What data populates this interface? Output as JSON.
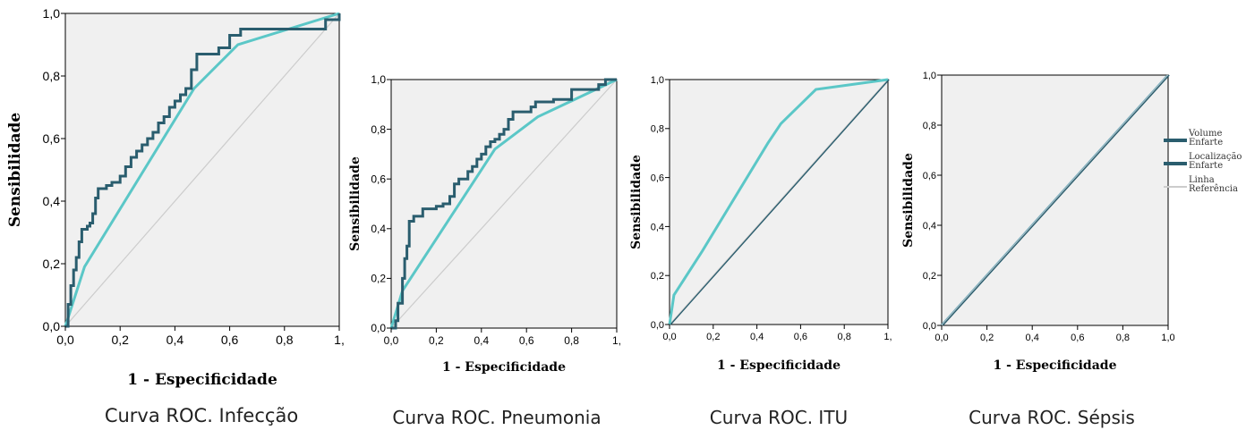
{
  "colors": {
    "volume": "#2a5d6e",
    "localizacao": "#5bc7c7",
    "reference": "#cccccc",
    "plot_bg": "#f0f0f0"
  },
  "legend": {
    "items": [
      {
        "label": "Volume Enfarte",
        "color": "#2a5d6e"
      },
      {
        "label": "Localização Enfarte",
        "color": "#2a5d6e"
      },
      {
        "label": "Linha Referência",
        "color": "#cccccc"
      }
    ]
  },
  "chart_data": [
    {
      "type": "line",
      "caption": "Curva ROC. Infecção",
      "xlabel": "1 - Especificidade",
      "ylabel": "Sensibilidade",
      "xlim": [
        0,
        1
      ],
      "ylim": [
        0,
        1
      ],
      "xticks": [
        "0,0",
        "0,2",
        "0,4",
        "0,6",
        "0,8",
        "1,"
      ],
      "yticks": [
        "0,0",
        "0,2",
        "0,4",
        "0,6",
        "0,8",
        "1,0"
      ],
      "series": [
        {
          "role": "volume",
          "x": [
            0,
            0.01,
            0.02,
            0.03,
            0.04,
            0.05,
            0.06,
            0.08,
            0.09,
            0.1,
            0.11,
            0.12,
            0.15,
            0.17,
            0.2,
            0.22,
            0.24,
            0.26,
            0.28,
            0.3,
            0.32,
            0.34,
            0.36,
            0.38,
            0.4,
            0.42,
            0.44,
            0.46,
            0.48,
            0.55,
            0.56,
            0.6,
            0.64,
            0.7,
            0.9,
            0.95,
            1.0
          ],
          "y": [
            0,
            0.07,
            0.13,
            0.18,
            0.22,
            0.27,
            0.31,
            0.32,
            0.33,
            0.36,
            0.41,
            0.44,
            0.45,
            0.46,
            0.48,
            0.51,
            0.54,
            0.56,
            0.58,
            0.6,
            0.62,
            0.65,
            0.67,
            0.7,
            0.72,
            0.74,
            0.76,
            0.82,
            0.87,
            0.87,
            0.89,
            0.93,
            0.95,
            0.95,
            0.95,
            0.98,
            1.0
          ]
        },
        {
          "role": "localizacao",
          "x": [
            0,
            0.07,
            0.47,
            0.63,
            1.0
          ],
          "y": [
            0,
            0.19,
            0.76,
            0.9,
            1.0
          ]
        },
        {
          "role": "reference",
          "x": [
            0,
            1
          ],
          "y": [
            0,
            1
          ]
        }
      ]
    },
    {
      "type": "line",
      "caption": "Curva ROC. Pneumonia",
      "xlabel": "1 - Especificidade",
      "ylabel": "Sensibilidade",
      "xlim": [
        0,
        1
      ],
      "ylim": [
        0,
        1
      ],
      "xticks": [
        "0,0",
        "0,2",
        "0,4",
        "0,6",
        "0,8",
        "1,"
      ],
      "yticks": [
        "0,0",
        "0,2",
        "0,4",
        "0,6",
        "0,8",
        "1,0"
      ],
      "series": [
        {
          "role": "volume",
          "x": [
            0,
            0.02,
            0.03,
            0.05,
            0.06,
            0.07,
            0.08,
            0.1,
            0.14,
            0.2,
            0.23,
            0.26,
            0.28,
            0.3,
            0.34,
            0.36,
            0.38,
            0.4,
            0.42,
            0.44,
            0.46,
            0.48,
            0.5,
            0.52,
            0.54,
            0.6,
            0.62,
            0.64,
            0.72,
            0.78,
            0.8,
            0.92,
            0.95,
            1.0
          ],
          "y": [
            0,
            0.03,
            0.1,
            0.2,
            0.28,
            0.33,
            0.43,
            0.45,
            0.48,
            0.49,
            0.5,
            0.53,
            0.58,
            0.6,
            0.63,
            0.65,
            0.68,
            0.7,
            0.73,
            0.75,
            0.76,
            0.78,
            0.8,
            0.84,
            0.87,
            0.87,
            0.89,
            0.91,
            0.92,
            0.92,
            0.96,
            0.98,
            1.0,
            1.0
          ]
        },
        {
          "role": "localizacao",
          "x": [
            0,
            0.05,
            0.46,
            0.65,
            1.0
          ],
          "y": [
            0,
            0.15,
            0.72,
            0.85,
            1.0
          ]
        },
        {
          "role": "reference",
          "x": [
            0,
            1
          ],
          "y": [
            0,
            1
          ]
        }
      ]
    },
    {
      "type": "line",
      "caption": "Curva ROC. ITU",
      "xlabel": "1 - Especificidade",
      "ylabel": "Sensibilidade",
      "xlim": [
        0,
        1
      ],
      "ylim": [
        0,
        1
      ],
      "xticks": [
        "0,0",
        "0,2",
        "0,4",
        "0,6",
        "0,8",
        "1,"
      ],
      "yticks": [
        "0,0",
        "0,2",
        "0,4",
        "0,6",
        "0,8",
        "1,0"
      ],
      "series": [
        {
          "role": "volume",
          "x": [
            0,
            1
          ],
          "y": [
            0,
            1
          ]
        },
        {
          "role": "localizacao",
          "x": [
            0,
            0.02,
            0.15,
            0.45,
            0.51,
            0.67,
            1.0
          ],
          "y": [
            0,
            0.12,
            0.3,
            0.74,
            0.82,
            0.96,
            1.0
          ]
        },
        {
          "role": "reference",
          "x": [
            0,
            1
          ],
          "y": [
            0,
            1
          ]
        }
      ]
    },
    {
      "type": "line",
      "caption": "Curva ROC. Sépsis",
      "xlabel": "1 - Especificidade",
      "ylabel": "Sensibilidade",
      "xlim": [
        0,
        1
      ],
      "ylim": [
        0,
        1
      ],
      "xticks": [
        "0,0",
        "0,2",
        "0,4",
        "0,6",
        "0,8",
        "1,0"
      ],
      "yticks": [
        "0,0",
        "0,2",
        "0,4",
        "0,6",
        "0,8",
        "1,0"
      ],
      "series": [
        {
          "role": "volume",
          "x": [
            0,
            1
          ],
          "y": [
            0,
            1
          ]
        },
        {
          "role": "localizacao",
          "x": [
            0,
            1
          ],
          "y": [
            0,
            1
          ]
        },
        {
          "role": "reference",
          "x": [
            0,
            1
          ],
          "y": [
            0,
            1
          ]
        }
      ]
    }
  ]
}
